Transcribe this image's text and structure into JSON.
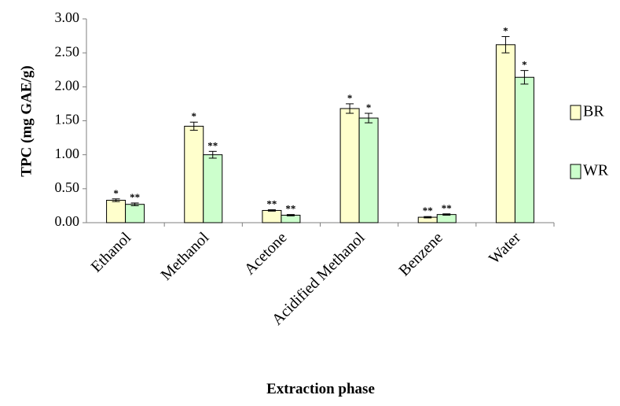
{
  "chart_data": {
    "type": "bar",
    "title": "",
    "xlabel": "Extraction phase",
    "ylabel": "TPC (mg GAE/g)",
    "ylim": [
      0,
      3.0
    ],
    "yticks": [
      "0.00",
      "0.50",
      "1.00",
      "1.50",
      "2.00",
      "2.50",
      "3.00"
    ],
    "grid": false,
    "legend_position": "right",
    "categories": [
      "Ethanol",
      "Methanol",
      "Acetone",
      "Acidified Methanol",
      "Benzene",
      "Water"
    ],
    "series": [
      {
        "name": "BR",
        "color": "#FFFFCC",
        "values": [
          0.33,
          1.42,
          0.18,
          1.68,
          0.08,
          2.62
        ],
        "errors": [
          0.02,
          0.06,
          0.01,
          0.07,
          0.01,
          0.12
        ],
        "significance": [
          "*",
          "*",
          "**",
          "*",
          "**",
          "*"
        ]
      },
      {
        "name": "WR",
        "color": "#CCFFCC",
        "values": [
          0.27,
          1.0,
          0.11,
          1.54,
          0.12,
          2.14
        ],
        "errors": [
          0.02,
          0.05,
          0.01,
          0.07,
          0.01,
          0.1
        ],
        "significance": [
          "**",
          "**",
          "**",
          "*",
          "**",
          "*"
        ]
      }
    ]
  }
}
